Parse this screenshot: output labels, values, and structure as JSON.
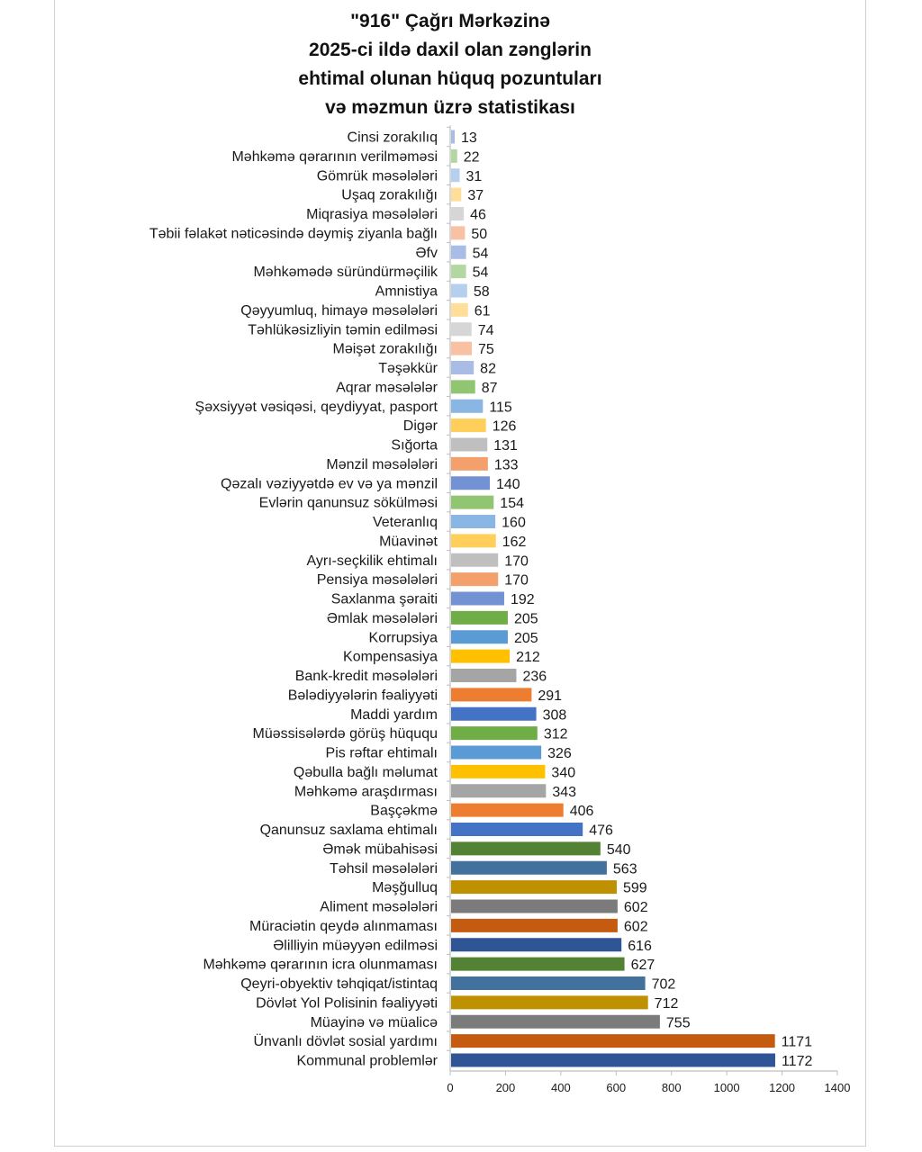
{
  "chart_data": {
    "type": "bar",
    "orientation": "horizontal",
    "title_lines": [
      "\"916\" Çağrı Mərkəzinə",
      "2025-ci ildə daxil olan zənglərin",
      "ehtimal olunan hüquq pozuntuları",
      "və məzmun üzrə statistikası"
    ],
    "xlabel": "",
    "ylabel": "",
    "xlim": [
      0,
      1400
    ],
    "xticks": [
      0,
      200,
      400,
      600,
      800,
      1000,
      1200,
      1400
    ],
    "grid": false,
    "legend": "none",
    "data_labels": true,
    "categories": [
      "Cinsi zorakılıq",
      "Məhkəmə qərarının verilməməsi",
      "Gömrük məsələləri",
      "Uşaq zorakılığı",
      "Miqrasiya məsələləri",
      "Təbii fəlakət nəticəsində dəymiş ziyanla bağlı",
      "Əfv",
      "Məhkəmədə süründürməçilik",
      "Amnistiya",
      "Qəyyumluq, himayə məsələləri",
      "Təhlükəsizliyin təmin edilməsi",
      "Məişət zorakılığı",
      "Təşəkkür",
      "Aqrar məsələlər",
      "Şəxsiyyət vəsiqəsi, qeydiyyat, pasport",
      "Digər",
      "Sığorta",
      "Mənzil məsələləri",
      "Qəzalı vəziyyətdə ev və ya mənzil",
      "Evlərin qanunsuz sökülməsi",
      "Veteranlıq",
      "Müavinət",
      "Ayrı-seçkilik ehtimalı",
      "Pensiya məsələləri",
      "Saxlanma şəraiti",
      "Əmlak məsələləri",
      "Korrupsiya",
      "Kompensasiya",
      "Bank-kredit məsələləri",
      "Bələdiyyələrin fəaliyyəti",
      "Maddi yardım",
      "Müəssisələrdə görüş hüququ",
      "Pis rəftar ehtimalı",
      "Qəbulla bağlı məlumat",
      "Məhkəmə araşdırması",
      "Başçəkmə",
      "Qanunsuz saxlama ehtimalı",
      "Əmək mübahisəsi",
      "Təhsil məsələləri",
      "Məşğulluq",
      "Aliment məsələləri",
      "Müraciətin qeydə alınmaması",
      "Əlilliyin müəyyən edilməsi",
      "Məhkəmə qərarının icra olunmaması",
      "Qeyri-obyektiv təhqiqat/istintaq",
      "Dövlət Yol Polisinin fəaliyyəti",
      "Müayinə və müalicə",
      "Ünvanlı dövlət sosial yardımı",
      "Kommunal problemlər"
    ],
    "values": [
      13,
      22,
      31,
      37,
      46,
      50,
      54,
      54,
      58,
      61,
      74,
      75,
      82,
      87,
      115,
      126,
      131,
      133,
      140,
      154,
      160,
      162,
      170,
      170,
      192,
      205,
      205,
      212,
      236,
      291,
      308,
      312,
      326,
      340,
      343,
      406,
      476,
      540,
      563,
      599,
      602,
      602,
      616,
      627,
      702,
      712,
      755,
      1171,
      1172
    ],
    "palette_tiers_from_bottom": [
      [
        "#2F5597",
        "#C55A11",
        "#7B7B7B",
        "#BF9000",
        "#41719C",
        "#548235"
      ],
      [
        "#4472C4",
        "#ED7D31",
        "#A5A5A5",
        "#FFC000",
        "#5B9BD5",
        "#70AD47"
      ],
      [
        "#7392D3",
        "#F3A06C",
        "#BFBFBF",
        "#FFCF5A",
        "#8AB6E3",
        "#92C572"
      ],
      [
        "#A9BCE6",
        "#F8C1A3",
        "#D6D6D6",
        "#FFDE9A",
        "#B5D0EE",
        "#B3D7A0"
      ]
    ],
    "axis_color": "#BFBFBF"
  }
}
